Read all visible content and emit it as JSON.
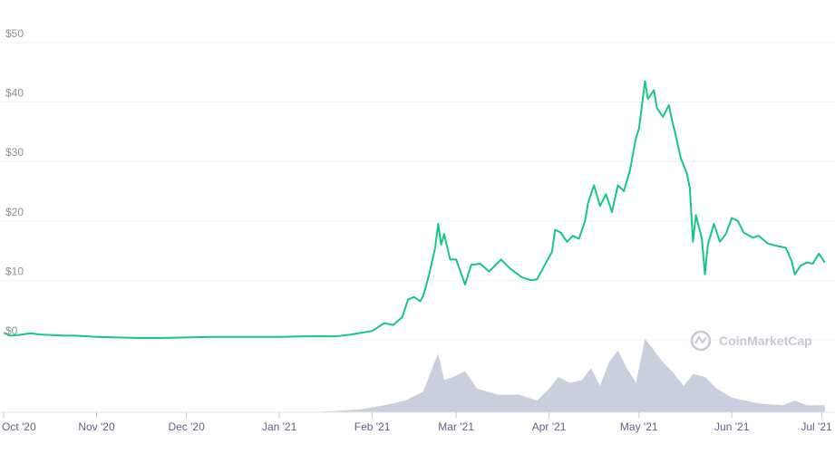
{
  "chart_data": {
    "type": "line",
    "watermark": "CoinMarketCap",
    "y_axis": {
      "ylim": [
        0,
        50
      ],
      "ticks": [
        {
          "value": 0,
          "label": "$0"
        },
        {
          "value": 10,
          "label": "$10"
        },
        {
          "value": 20,
          "label": "$20"
        },
        {
          "value": 30,
          "label": "$30"
        },
        {
          "value": 40,
          "label": "$40"
        },
        {
          "value": 50,
          "label": "$50"
        }
      ],
      "grid": true
    },
    "x_axis": {
      "xlim": [
        "2020-10-01",
        "2021-07-03"
      ],
      "ticks": [
        {
          "value": "2020-10-01",
          "label": "Oct '20"
        },
        {
          "value": "2020-11-01",
          "label": "Nov '20"
        },
        {
          "value": "2020-12-01",
          "label": "Dec '20"
        },
        {
          "value": "2021-01-01",
          "label": "Jan '21"
        },
        {
          "value": "2021-02-01",
          "label": "Feb '21"
        },
        {
          "value": "2021-03-01",
          "label": "Mar '21"
        },
        {
          "value": "2021-04-01",
          "label": "Apr '21"
        },
        {
          "value": "2021-05-01",
          "label": "May '21"
        },
        {
          "value": "2021-06-01",
          "label": "Jun '21"
        },
        {
          "value": "2021-07-01",
          "label": "Jul '21"
        }
      ]
    },
    "colors": {
      "price_line": "#16c784",
      "volume_area": "#c9cfdc",
      "grid": "#eff2f5"
    },
    "series": [
      {
        "type": "line",
        "points": [
          [
            "2020-10-01",
            1.2
          ],
          [
            "2020-10-03",
            0.7
          ],
          [
            "2020-10-06",
            0.8
          ],
          [
            "2020-10-10",
            1.1
          ],
          [
            "2020-10-13",
            0.9
          ],
          [
            "2020-10-17",
            0.8
          ],
          [
            "2020-10-21",
            0.7
          ],
          [
            "2020-10-25",
            0.7
          ],
          [
            "2020-11-01",
            0.5
          ],
          [
            "2020-11-08",
            0.4
          ],
          [
            "2020-11-15",
            0.3
          ],
          [
            "2020-11-22",
            0.3
          ],
          [
            "2020-12-01",
            0.4
          ],
          [
            "2020-12-10",
            0.5
          ],
          [
            "2020-12-20",
            0.5
          ],
          [
            "2021-01-01",
            0.5
          ],
          [
            "2021-01-10",
            0.6
          ],
          [
            "2021-01-20",
            0.6
          ],
          [
            "2021-01-25",
            0.9
          ],
          [
            "2021-02-01",
            1.5
          ],
          [
            "2021-02-05",
            2.8
          ],
          [
            "2021-02-08",
            2.5
          ],
          [
            "2021-02-11",
            3.8
          ],
          [
            "2021-02-13",
            6.8
          ],
          [
            "2021-02-15",
            7.2
          ],
          [
            "2021-02-17",
            6.5
          ],
          [
            "2021-02-18",
            7.4
          ],
          [
            "2021-02-20",
            11.0
          ],
          [
            "2021-02-22",
            15.5
          ],
          [
            "2021-02-23",
            19.5
          ],
          [
            "2021-02-24",
            16.0
          ],
          [
            "2021-02-25",
            17.8
          ],
          [
            "2021-02-27",
            13.5
          ],
          [
            "2021-03-01",
            13.5
          ],
          [
            "2021-03-04",
            9.3
          ],
          [
            "2021-03-06",
            12.6
          ],
          [
            "2021-03-09",
            12.8
          ],
          [
            "2021-03-12",
            11.5
          ],
          [
            "2021-03-14",
            12.5
          ],
          [
            "2021-03-16",
            13.5
          ],
          [
            "2021-03-19",
            12.0
          ],
          [
            "2021-03-23",
            10.5
          ],
          [
            "2021-03-26",
            10.0
          ],
          [
            "2021-03-28",
            10.2
          ],
          [
            "2021-03-31",
            13.0
          ],
          [
            "2021-04-02",
            14.8
          ],
          [
            "2021-04-03",
            18.5
          ],
          [
            "2021-04-05",
            18.0
          ],
          [
            "2021-04-07",
            16.5
          ],
          [
            "2021-04-09",
            17.5
          ],
          [
            "2021-04-11",
            17.0
          ],
          [
            "2021-04-13",
            20.0
          ],
          [
            "2021-04-14",
            23.0
          ],
          [
            "2021-04-16",
            26.0
          ],
          [
            "2021-04-18",
            22.5
          ],
          [
            "2021-04-20",
            24.5
          ],
          [
            "2021-04-22",
            21.5
          ],
          [
            "2021-04-24",
            26.0
          ],
          [
            "2021-04-26",
            25.0
          ],
          [
            "2021-04-28",
            28.5
          ],
          [
            "2021-04-30",
            34.0
          ],
          [
            "2021-05-01",
            35.5
          ],
          [
            "2021-05-03",
            43.5
          ],
          [
            "2021-05-04",
            40.5
          ],
          [
            "2021-05-06",
            42.0
          ],
          [
            "2021-05-07",
            39.0
          ],
          [
            "2021-05-09",
            37.5
          ],
          [
            "2021-05-11",
            39.5
          ],
          [
            "2021-05-12",
            37.0
          ],
          [
            "2021-05-13",
            35.0
          ],
          [
            "2021-05-15",
            30.5
          ],
          [
            "2021-05-17",
            28.0
          ],
          [
            "2021-05-18",
            25.5
          ],
          [
            "2021-05-19",
            16.5
          ],
          [
            "2021-05-20",
            21.0
          ],
          [
            "2021-05-22",
            17.0
          ],
          [
            "2021-05-23",
            11.0
          ],
          [
            "2021-05-24",
            16.0
          ],
          [
            "2021-05-26",
            19.5
          ],
          [
            "2021-05-28",
            16.5
          ],
          [
            "2021-05-30",
            17.8
          ],
          [
            "2021-06-01",
            20.5
          ],
          [
            "2021-06-03",
            20.0
          ],
          [
            "2021-06-05",
            18.0
          ],
          [
            "2021-06-08",
            17.2
          ],
          [
            "2021-06-10",
            17.5
          ],
          [
            "2021-06-13",
            16.2
          ],
          [
            "2021-06-16",
            15.8
          ],
          [
            "2021-06-19",
            15.5
          ],
          [
            "2021-06-21",
            13.2
          ],
          [
            "2021-06-22",
            11.0
          ],
          [
            "2021-06-24",
            12.5
          ],
          [
            "2021-06-26",
            13.0
          ],
          [
            "2021-06-28",
            12.8
          ],
          [
            "2021-06-30",
            14.5
          ],
          [
            "2021-07-02",
            13.0
          ]
        ]
      }
    ],
    "volume": {
      "type": "area",
      "points": [
        [
          "2020-10-01",
          0.01
        ],
        [
          "2021-01-15",
          0.01
        ],
        [
          "2021-01-28",
          0.05
        ],
        [
          "2021-02-05",
          0.12
        ],
        [
          "2021-02-12",
          0.2
        ],
        [
          "2021-02-18",
          0.35
        ],
        [
          "2021-02-21",
          0.75
        ],
        [
          "2021-02-23",
          1.0
        ],
        [
          "2021-02-25",
          0.55
        ],
        [
          "2021-02-28",
          0.6
        ],
        [
          "2021-03-04",
          0.7
        ],
        [
          "2021-03-08",
          0.4
        ],
        [
          "2021-03-15",
          0.3
        ],
        [
          "2021-03-22",
          0.3
        ],
        [
          "2021-03-28",
          0.2
        ],
        [
          "2021-04-01",
          0.4
        ],
        [
          "2021-04-04",
          0.6
        ],
        [
          "2021-04-08",
          0.5
        ],
        [
          "2021-04-12",
          0.55
        ],
        [
          "2021-04-15",
          0.75
        ],
        [
          "2021-04-18",
          0.45
        ],
        [
          "2021-04-21",
          0.85
        ],
        [
          "2021-04-24",
          1.05
        ],
        [
          "2021-04-27",
          0.75
        ],
        [
          "2021-04-30",
          0.5
        ],
        [
          "2021-05-03",
          1.25
        ],
        [
          "2021-05-06",
          1.05
        ],
        [
          "2021-05-09",
          0.85
        ],
        [
          "2021-05-12",
          0.7
        ],
        [
          "2021-05-16",
          0.45
        ],
        [
          "2021-05-19",
          0.65
        ],
        [
          "2021-05-23",
          0.6
        ],
        [
          "2021-05-27",
          0.4
        ],
        [
          "2021-06-01",
          0.25
        ],
        [
          "2021-06-10",
          0.15
        ],
        [
          "2021-06-18",
          0.12
        ],
        [
          "2021-06-22",
          0.2
        ],
        [
          "2021-06-26",
          0.12
        ],
        [
          "2021-07-02",
          0.12
        ]
      ]
    }
  }
}
